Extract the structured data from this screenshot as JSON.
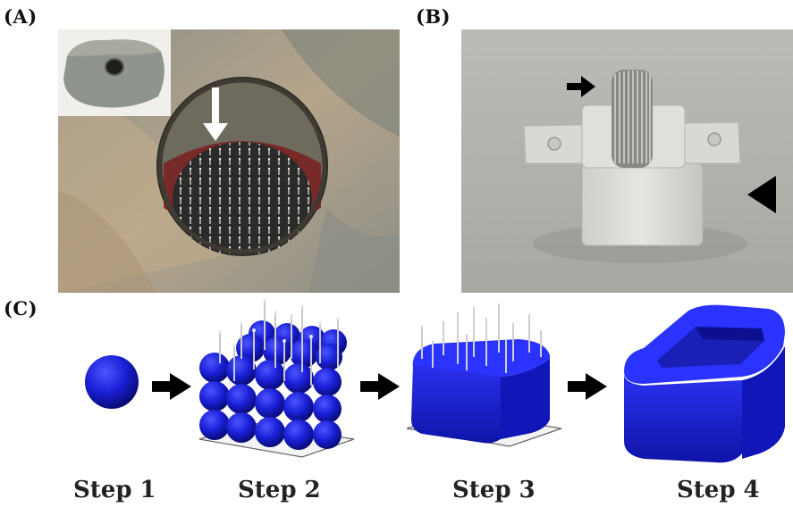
{
  "panels": {
    "a": {
      "label": "(A)"
    },
    "b": {
      "label": "(B)"
    },
    "c": {
      "label": "(C)"
    }
  },
  "steps": [
    {
      "label": "Step 1"
    },
    {
      "label": "Step 2"
    },
    {
      "label": "Step 3"
    },
    {
      "label": "Step 4"
    }
  ],
  "colors": {
    "model_blue": "#1a1fd6",
    "stone": "#9a9a8a",
    "background_gray": "#b9b7b2",
    "arrow_black": "#000000"
  },
  "icons": {
    "white_arrow": "arrow-down-icon",
    "black_arrow_b": "arrow-right-icon",
    "black_triangle_b": "triangle-left-icon",
    "step_arrow": "arrow-right-icon"
  }
}
